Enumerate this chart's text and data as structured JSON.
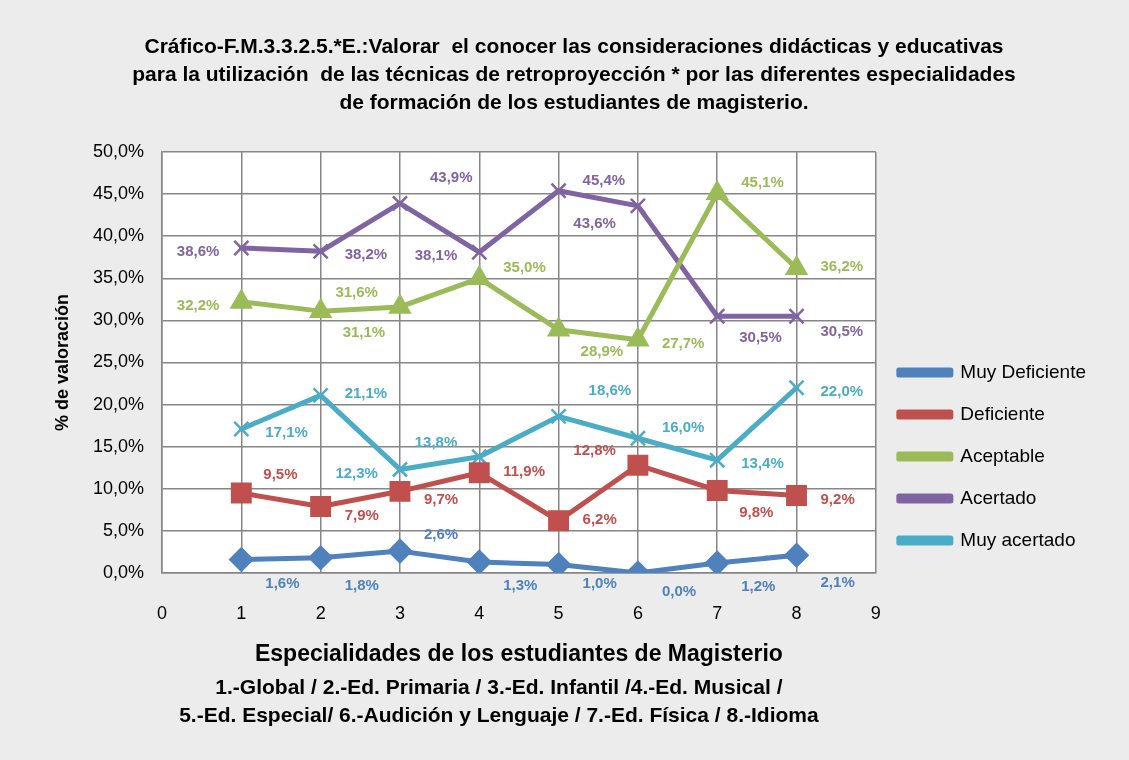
{
  "chart_data": {
    "type": "line",
    "title": "Cráfico-F.M.3.3.2.5.*E.:Valorar  el conocer las consideraciones didácticas y educativas\npara la utilización  de las técnicas de retroproyección * por las diferentes especialidades\nde formación de los estudiantes de magisterio.",
    "xlabel": "Especialidades de los estudiantes de Magisterio",
    "ylabel": "% de valoración",
    "annotations": [
      "1.-Global / 2.-Ed. Primaria / 3.-Ed. Infantil /4.-Ed. Musical /",
      "5.-Ed. Especial/ 6.-Audición y Lenguaje / 7.-Ed. Física / 8.-Idioma"
    ],
    "x": [
      1,
      2,
      3,
      4,
      5,
      6,
      7,
      8
    ],
    "xlim": [
      0,
      9
    ],
    "xticks": [
      0,
      1,
      2,
      3,
      4,
      5,
      6,
      7,
      8,
      9
    ],
    "ylim": [
      0,
      50
    ],
    "yticks": [
      {
        "value": 0,
        "label": "0,0%"
      },
      {
        "value": 5,
        "label": "5,0%"
      },
      {
        "value": 10,
        "label": "10,0%"
      },
      {
        "value": 15,
        "label": "15,0%"
      },
      {
        "value": 20,
        "label": "20,0%"
      },
      {
        "value": 25,
        "label": "25,0%"
      },
      {
        "value": 30,
        "label": "30,0%"
      },
      {
        "value": 35,
        "label": "35,0%"
      },
      {
        "value": 40,
        "label": "40,0%"
      },
      {
        "value": 45,
        "label": "45,0%"
      },
      {
        "value": 50,
        "label": "50,0%"
      }
    ],
    "grid": true,
    "legend": "right",
    "series": [
      {
        "name": "Muy Deficiente",
        "color": "#4f81bd",
        "marker": "diamond",
        "values": [
          1.6,
          1.8,
          2.6,
          1.3,
          1.0,
          0.0,
          1.2,
          2.1
        ],
        "value_labels": [
          "1,6%",
          "1,8%",
          "2,6%",
          "1,3%",
          "1,0%",
          "0,0%",
          "1,2%",
          "2,1%"
        ]
      },
      {
        "name": "Deficiente",
        "color": "#c0504d",
        "marker": "square",
        "values": [
          9.5,
          7.9,
          9.7,
          11.9,
          6.2,
          12.8,
          9.8,
          9.2
        ],
        "value_labels": [
          "9,5%",
          "7,9%",
          "9,7%",
          "11,9%",
          "6,2%",
          "12,8%",
          "9,8%",
          "9,2%"
        ]
      },
      {
        "name": "Aceptable",
        "color": "#9bbb59",
        "marker": "triangle",
        "values": [
          32.2,
          31.1,
          31.6,
          35.0,
          28.9,
          27.7,
          45.1,
          36.2
        ],
        "value_labels": [
          "32,2%",
          "31,1%",
          "31,6%",
          "35,0%",
          "28,9%",
          "27,7%",
          "45,1%",
          "36,2%"
        ]
      },
      {
        "name": "Acertado",
        "color": "#8064a2",
        "marker": "cross",
        "values": [
          38.6,
          38.2,
          43.9,
          38.1,
          45.4,
          43.6,
          30.5,
          30.5
        ],
        "value_labels": [
          "38,6%",
          "38,2%",
          "43,9%",
          "38,1%",
          "45,4%",
          "43,6%",
          "30,5%",
          "30,5%"
        ]
      },
      {
        "name": "Muy acertado",
        "color": "#4bacc6",
        "marker": "cross",
        "values": [
          17.1,
          21.1,
          12.3,
          13.8,
          18.6,
          16.0,
          13.4,
          22.0
        ],
        "value_labels": [
          "17,1%",
          "21,1%",
          "12,3%",
          "13,8%",
          "18,6%",
          "16,0%",
          "13,4%",
          "22,0%"
        ]
      }
    ]
  }
}
